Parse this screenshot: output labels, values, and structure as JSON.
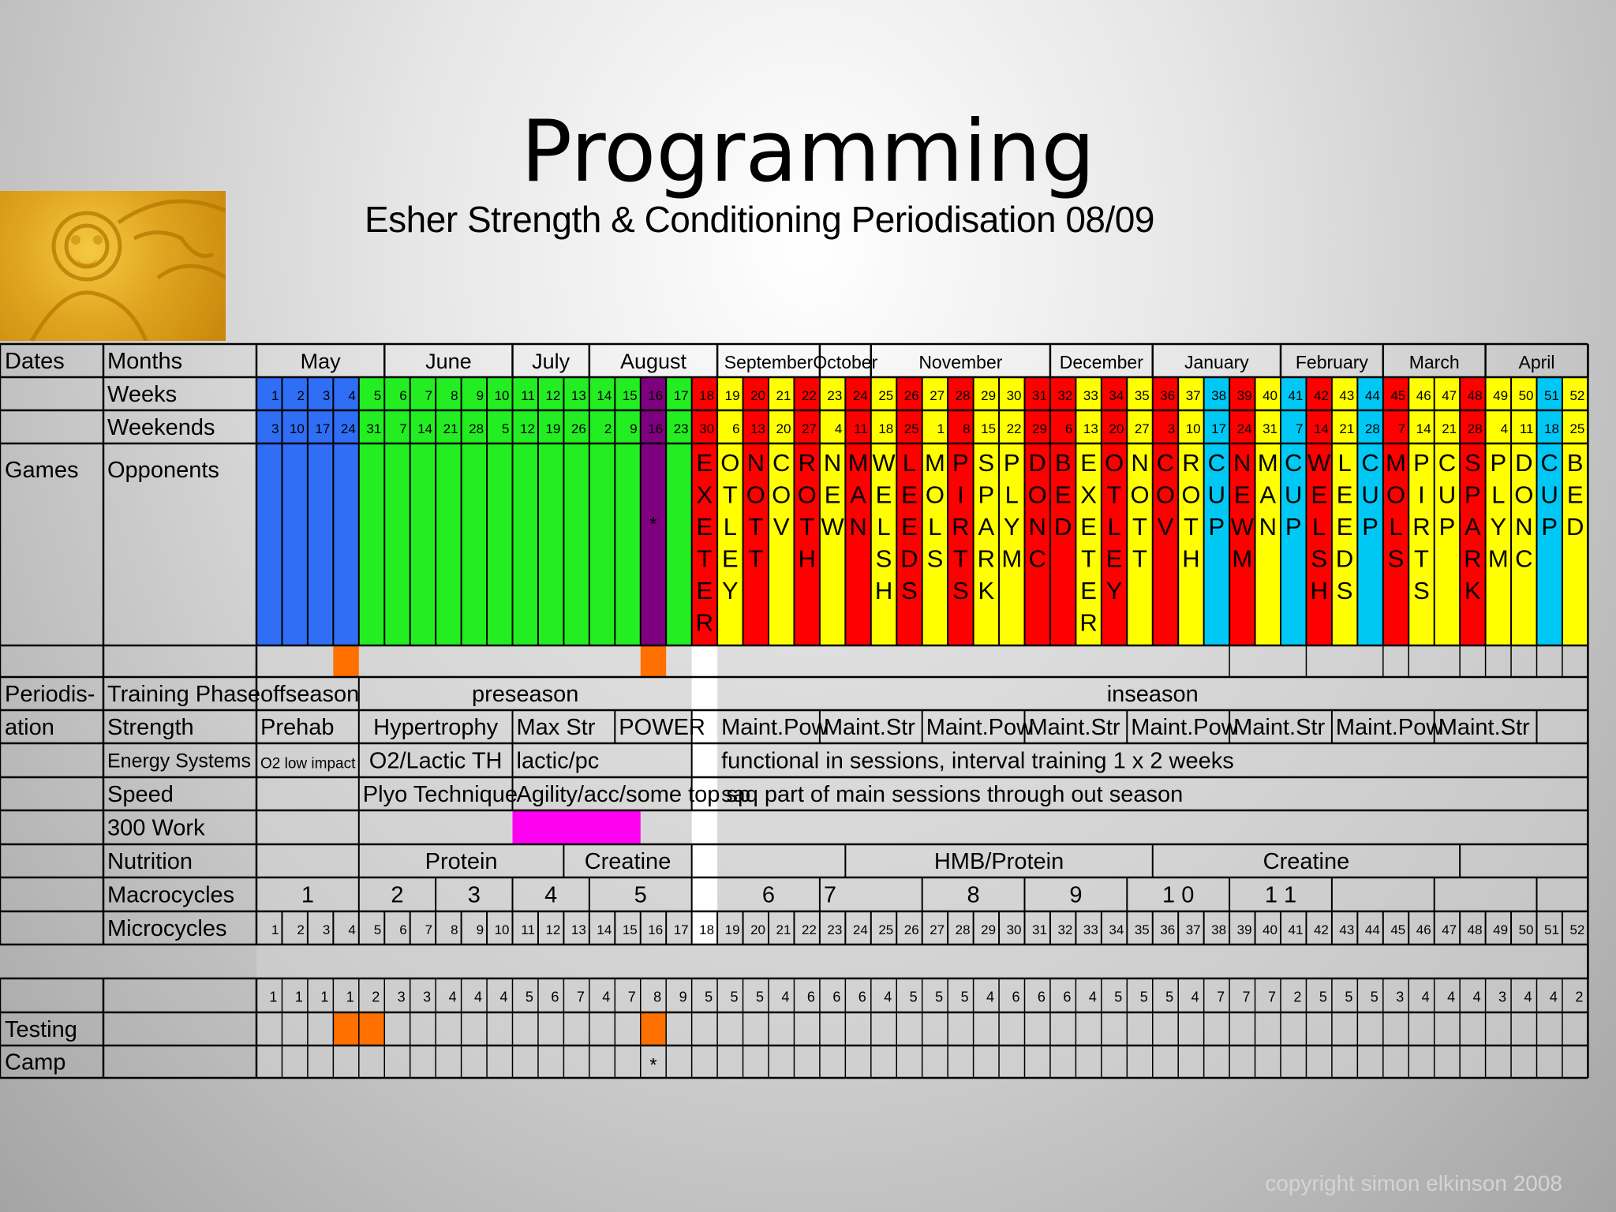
{
  "title": "Programming",
  "subtitle": "Esher Strength & Conditioning Periodisation 08/09",
  "copyright": "copyright simon elkinson 2008",
  "colors": {
    "blue": "#2f6ef5",
    "green": "#22ee22",
    "purple": "#7f007f",
    "red": "#ff0000",
    "yellow": "#ffff00",
    "cyan": "#00c8f5",
    "orange": "#ff7000",
    "magenta": "#ff00f0",
    "white": "#ffffff"
  },
  "labels": {
    "dates": "Dates",
    "games": "Games",
    "periodisation": [
      "Periodis-",
      "ation"
    ],
    "months": "Months",
    "weeks": "Weeks",
    "weekends": "Weekends",
    "opponents": "Opponents",
    "training_phase": "Training Phase",
    "strength": "Strength",
    "energy_systems": "Energy Systems",
    "speed": "Speed",
    "work300": "300 Work",
    "nutrition": "Nutrition",
    "macrocycles": "Macrocycles",
    "microcycles": "Microcycles",
    "testing": "Testing",
    "camp": "Camp"
  },
  "months": [
    {
      "name": "May",
      "start": 1,
      "end": 5,
      "size": 27
    },
    {
      "name": "June",
      "start": 6,
      "end": 10,
      "size": 27
    },
    {
      "name": "July",
      "start": 11,
      "end": 13,
      "size": 27
    },
    {
      "name": "August",
      "start": 14,
      "end": 18,
      "size": 27
    },
    {
      "name": "September",
      "start": 19,
      "end": 22,
      "size": 23
    },
    {
      "name": "October",
      "start": 23,
      "end": 24,
      "size": 23
    },
    {
      "name": "November",
      "start": 25,
      "end": 31,
      "size": 23
    },
    {
      "name": "December",
      "start": 32,
      "end": 35,
      "size": 23
    },
    {
      "name": "January",
      "start": 36,
      "end": 40,
      "size": 23
    },
    {
      "name": "February",
      "start": 41,
      "end": 44,
      "size": 23
    },
    {
      "name": "March",
      "start": 45,
      "end": 48,
      "size": 23
    },
    {
      "name": "April",
      "start": 49,
      "end": 52,
      "size": 23
    }
  ],
  "weeks": [
    1,
    2,
    3,
    4,
    5,
    6,
    7,
    8,
    9,
    10,
    11,
    12,
    13,
    14,
    15,
    16,
    17,
    18,
    19,
    20,
    21,
    22,
    23,
    24,
    25,
    26,
    27,
    28,
    29,
    30,
    31,
    32,
    33,
    34,
    35,
    36,
    37,
    38,
    39,
    40,
    41,
    42,
    43,
    44,
    45,
    46,
    47,
    48,
    49,
    50,
    51,
    52
  ],
  "weekends": [
    3,
    10,
    17,
    24,
    31,
    7,
    14,
    21,
    28,
    5,
    12,
    19,
    26,
    2,
    9,
    16,
    23,
    30,
    6,
    13,
    20,
    27,
    4,
    11,
    18,
    25,
    1,
    8,
    15,
    22,
    29,
    6,
    13,
    20,
    27,
    3,
    10,
    17,
    24,
    31,
    7,
    14,
    21,
    28,
    7,
    14,
    21,
    28,
    4,
    11,
    18,
    25
  ],
  "col_colors": [
    "blue",
    "blue",
    "blue",
    "blue",
    "green",
    "green",
    "green",
    "green",
    "green",
    "green",
    "green",
    "green",
    "green",
    "green",
    "green",
    "purple",
    "green",
    "red",
    "yellow",
    "red",
    "yellow",
    "red",
    "yellow",
    "red",
    "yellow",
    "red",
    "yellow",
    "red",
    "yellow",
    "yellow",
    "red",
    "red",
    "yellow",
    "red",
    "yellow",
    "red",
    "yellow",
    "cyan",
    "red",
    "yellow",
    "cyan",
    "red",
    "yellow",
    "cyan",
    "red",
    "yellow",
    "yellow",
    "red",
    "yellow",
    "yellow",
    "cyan",
    "yellow"
  ],
  "opponents": [
    "",
    "",
    "",
    "",
    "",
    "",
    "",
    "",
    "",
    "",
    "",
    "",
    "",
    "",
    "",
    "*",
    "",
    "EXETER",
    "OTLEY",
    "NOTT",
    "COV",
    "ROTH",
    "NEW",
    "MAN",
    "WELSH",
    "LEEDS",
    "MOLS",
    "PIRTS",
    "SPARK",
    "PLYM",
    "DONC",
    "BED",
    "EXETER",
    "OTLEY",
    "NOTT",
    "COV",
    "ROTH",
    "CUP",
    "NEWM",
    "MAN",
    "CUP",
    "WELSH",
    "LEEDS",
    "CUP",
    "MOLS",
    "PIRTS",
    "CUP",
    "SPARK",
    "PLYM",
    "DONC",
    "CUP",
    "BED"
  ],
  "phase_orange": [
    4,
    16
  ],
  "phase_gray_left": [
    1,
    17
  ],
  "training_phase": [
    {
      "text": "offseason",
      "start": 1,
      "end": 4,
      "align": "left"
    },
    {
      "text": "preseason",
      "start": 5,
      "end": 17,
      "align": "center"
    },
    {
      "text": "inseason",
      "start": 19,
      "end": 52,
      "align": "center"
    }
  ],
  "strength": [
    {
      "text": "Prehab",
      "start": 1,
      "end": 4,
      "align": "left"
    },
    {
      "text": "Hypertrophy",
      "start": 5,
      "end": 10,
      "align": "center"
    },
    {
      "text": "Max Str",
      "start": 11,
      "end": 14,
      "align": "left"
    },
    {
      "text": "POWER",
      "start": 15,
      "end": 17,
      "align": "left"
    },
    {
      "text": "Maint.Pow",
      "start": 19,
      "end": 22,
      "align": "left"
    },
    {
      "text": "Maint.Str",
      "start": 23,
      "end": 26,
      "align": "left"
    },
    {
      "text": "Maint.Pow",
      "start": 27,
      "end": 30,
      "align": "left"
    },
    {
      "text": "Maint.Str",
      "start": 31,
      "end": 34,
      "align": "left"
    },
    {
      "text": "Maint.Pow",
      "start": 35,
      "end": 38,
      "align": "left"
    },
    {
      "text": "Maint.Str",
      "start": 39,
      "end": 42,
      "align": "left"
    },
    {
      "text": "Maint.Pow",
      "start": 43,
      "end": 46,
      "align": "left"
    },
    {
      "text": "Maint.Str",
      "start": 47,
      "end": 50,
      "align": "left"
    },
    {
      "text": "",
      "start": 51,
      "end": 52,
      "align": "left"
    }
  ],
  "energy": [
    {
      "text": "O2 low impact",
      "start": 1,
      "end": 4,
      "align": "left",
      "small": true
    },
    {
      "text": "O2/Lactic TH",
      "start": 5,
      "end": 10,
      "align": "center"
    },
    {
      "text": "lactic/pc",
      "start": 11,
      "end": 17,
      "align": "left"
    },
    {
      "text": "functional in sessions, interval training 1 x 2 weeks",
      "start": 19,
      "end": 52,
      "align": "left"
    }
  ],
  "speed": [
    {
      "text": "",
      "start": 1,
      "end": 4,
      "align": "left"
    },
    {
      "text": "Plyo   Technique",
      "start": 5,
      "end": 10,
      "align": "left"
    },
    {
      "text": "Agility/acc/some top sp",
      "start": 11,
      "end": 17,
      "align": "left"
    },
    {
      "text": "saq part of main sessions through out season",
      "start": 19,
      "end": 52,
      "align": "left"
    }
  ],
  "work300": {
    "start": 11,
    "end": 15
  },
  "nutrition": [
    {
      "text": "",
      "start": 1,
      "end": 4,
      "align": "left"
    },
    {
      "text": "Protein",
      "start": 5,
      "end": 12,
      "align": "center"
    },
    {
      "text": "Creatine",
      "start": 13,
      "end": 17,
      "align": "center"
    },
    {
      "text": "",
      "start": 19,
      "end": 23,
      "align": "left"
    },
    {
      "text": "HMB/Protein",
      "start": 24,
      "end": 35,
      "align": "center"
    },
    {
      "text": "Creatine",
      "start": 36,
      "end": 47,
      "align": "center"
    },
    {
      "text": "",
      "start": 48,
      "end": 52,
      "align": "left"
    }
  ],
  "macrocycles": [
    {
      "text": "1",
      "start": 1,
      "end": 4,
      "align": "center"
    },
    {
      "text": "2",
      "start": 5,
      "end": 7,
      "align": "center"
    },
    {
      "text": "3",
      "start": 8,
      "end": 10,
      "align": "center"
    },
    {
      "text": "4",
      "start": 11,
      "end": 13,
      "align": "center"
    },
    {
      "text": "5",
      "start": 14,
      "end": 17,
      "align": "center"
    },
    {
      "text": "6",
      "start": 19,
      "end": 22,
      "align": "center"
    },
    {
      "text": "7",
      "start": 23,
      "end": 26,
      "align": "left"
    },
    {
      "text": "8",
      "start": 27,
      "end": 30,
      "align": "center"
    },
    {
      "text": "9",
      "start": 31,
      "end": 34,
      "align": "center"
    },
    {
      "text": "1 0",
      "start": 35,
      "end": 38,
      "align": "center"
    },
    {
      "text": "1 1",
      "start": 39,
      "end": 42,
      "align": "center"
    },
    {
      "text": "",
      "start": 43,
      "end": 46,
      "align": "left"
    },
    {
      "text": "",
      "start": 47,
      "end": 50,
      "align": "left"
    },
    {
      "text": "",
      "start": 51,
      "end": 52,
      "align": "left"
    }
  ],
  "microcycles": [
    1,
    2,
    3,
    4,
    5,
    6,
    7,
    8,
    9,
    10,
    11,
    12,
    13,
    14,
    15,
    16,
    17,
    18,
    19,
    20,
    21,
    22,
    23,
    24,
    25,
    26,
    27,
    28,
    29,
    30,
    31,
    32,
    33,
    34,
    35,
    36,
    37,
    38,
    39,
    40,
    41,
    42,
    43,
    44,
    45,
    46,
    47,
    48,
    49,
    50,
    51,
    52
  ],
  "counts": [
    1,
    1,
    1,
    1,
    2,
    3,
    3,
    4,
    4,
    4,
    5,
    6,
    7,
    4,
    7,
    8,
    9,
    5,
    5,
    5,
    4,
    6,
    6,
    6,
    4,
    5,
    5,
    5,
    4,
    6,
    6,
    6,
    4,
    5,
    5,
    5,
    4,
    7,
    7,
    7,
    2,
    5,
    5,
    5,
    3,
    4,
    4,
    4,
    3,
    4,
    4,
    2
  ],
  "testing_orange": [
    4,
    5,
    16
  ],
  "camp_mark": {
    "week": 16,
    "text": "*"
  }
}
